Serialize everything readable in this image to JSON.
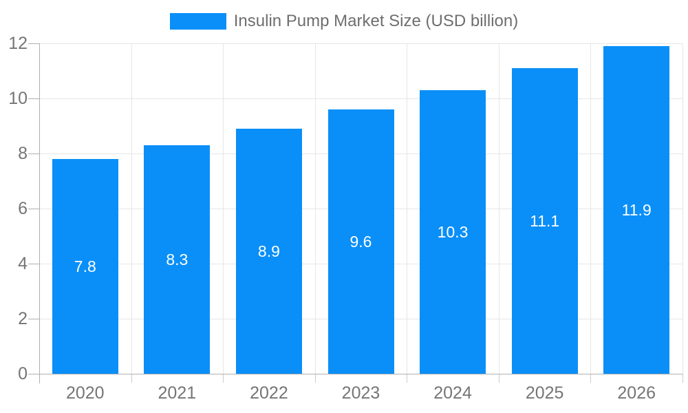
{
  "chart_data": {
    "type": "bar",
    "title": "Insulin Pump Market Size (USD billion)",
    "series": [
      {
        "name": "Insulin Pump Market Size (USD billion)",
        "values": [
          7.8,
          8.3,
          8.9,
          9.6,
          10.3,
          11.1,
          11.9
        ]
      }
    ],
    "categories": [
      "2020",
      "2021",
      "2022",
      "2023",
      "2024",
      "2025",
      "2026"
    ],
    "data_labels": [
      "7.8",
      "8.3",
      "8.9",
      "9.6",
      "10.3",
      "11.1",
      "11.9"
    ],
    "xlabel": "",
    "ylabel": "",
    "ylim": [
      0,
      12
    ],
    "yticks": [
      0,
      2,
      4,
      6,
      8,
      10,
      12
    ],
    "ytick_labels": [
      "0",
      "2",
      "4",
      "6",
      "8",
      "10",
      "12"
    ],
    "grid": true,
    "legend_position": "top",
    "colors": {
      "bar": "#0a8ff8",
      "grid": "#e6e6e6",
      "axis": "#b0b0b0",
      "minor_tick": "#cccccc",
      "axis_text": "#757575",
      "legend_text": "#6e6e6e",
      "value_label": "#ffffff",
      "background": "#ffffff"
    }
  }
}
